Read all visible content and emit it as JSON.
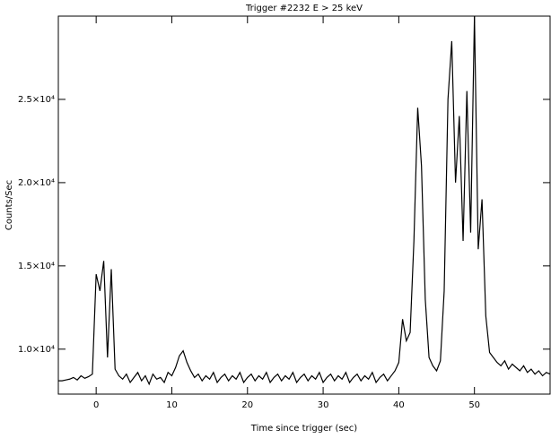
{
  "chart_data": {
    "type": "line",
    "title": "Trigger #2232 E > 25 keV",
    "x_label": "Time since trigger (sec)",
    "y_label": "Counts/Sec",
    "x": [
      -5,
      -4.5,
      -4,
      -3.5,
      -3,
      -2.5,
      -2,
      -1.5,
      -1,
      -0.5,
      0,
      0.5,
      1,
      1.5,
      2,
      2.5,
      3,
      3.5,
      4,
      4.5,
      5,
      5.5,
      6,
      6.5,
      7,
      7.5,
      8,
      8.5,
      9,
      9.5,
      10,
      10.5,
      11,
      11.5,
      12,
      12.5,
      13,
      13.5,
      14,
      14.5,
      15,
      15.5,
      16,
      16.5,
      17,
      17.5,
      18,
      18.5,
      19,
      19.5,
      20,
      20.5,
      21,
      21.5,
      22,
      22.5,
      23,
      23.5,
      24,
      24.5,
      25,
      25.5,
      26,
      26.5,
      27,
      27.5,
      28,
      28.5,
      29,
      29.5,
      30,
      30.5,
      31,
      31.5,
      32,
      32.5,
      33,
      33.5,
      34,
      34.5,
      35,
      35.5,
      36,
      36.5,
      37,
      37.5,
      38,
      38.5,
      39,
      39.5,
      40,
      40.5,
      41,
      41.5,
      42,
      42.5,
      43,
      43.5,
      44,
      44.5,
      45,
      45.5,
      46,
      46.5,
      47,
      47.5,
      48,
      48.5,
      49,
      49.5,
      50,
      50.5,
      51,
      51.5,
      52,
      52.5,
      53,
      53.5,
      54,
      54.5,
      55,
      55.5,
      56,
      56.5,
      57,
      57.5,
      58,
      58.5,
      59,
      59.5,
      60
    ],
    "series": [
      {
        "color": "#000000",
        "values": [
          8100,
          8100,
          8150,
          8200,
          8300,
          8150,
          8400,
          8250,
          8350,
          8500,
          14500,
          13500,
          15300,
          9500,
          14800,
          8800,
          8400,
          8200,
          8500,
          8000,
          8300,
          8600,
          8100,
          8400,
          7900,
          8500,
          8200,
          8300,
          8000,
          8600,
          8400,
          8900,
          9600,
          9900,
          9200,
          8700,
          8300,
          8500,
          8100,
          8400,
          8200,
          8600,
          8000,
          8300,
          8500,
          8100,
          8400,
          8200,
          8600,
          8000,
          8300,
          8500,
          8100,
          8400,
          8200,
          8600,
          8000,
          8300,
          8500,
          8100,
          8400,
          8200,
          8600,
          8000,
          8300,
          8500,
          8100,
          8400,
          8200,
          8600,
          8000,
          8300,
          8500,
          8100,
          8400,
          8200,
          8600,
          8000,
          8300,
          8500,
          8100,
          8400,
          8200,
          8600,
          8000,
          8300,
          8500,
          8100,
          8400,
          8700,
          9200,
          11800,
          10500,
          11000,
          16500,
          24500,
          21000,
          13000,
          9500,
          9000,
          8700,
          9300,
          13500,
          25000,
          28500,
          20000,
          24000,
          16500,
          25500,
          17000,
          30000,
          16000,
          19000,
          12000,
          9800,
          9500,
          9200,
          9000,
          9300,
          8800,
          9100,
          8900,
          8700,
          9000,
          8600,
          8800,
          8500,
          8700,
          8400,
          8600,
          8500
        ]
      }
    ],
    "xlim": [
      -5,
      60
    ],
    "xticks": [
      0,
      10,
      20,
      30,
      40,
      50
    ],
    "ylim": [
      7300,
      30000
    ],
    "yticks": [
      {
        "value": 10000,
        "label": "1.0×10⁴"
      },
      {
        "value": 15000,
        "label": "1.5×10⁴"
      },
      {
        "value": 20000,
        "label": "2.0×10⁴"
      },
      {
        "value": 25000,
        "label": "2.5×10⁴"
      }
    ]
  }
}
